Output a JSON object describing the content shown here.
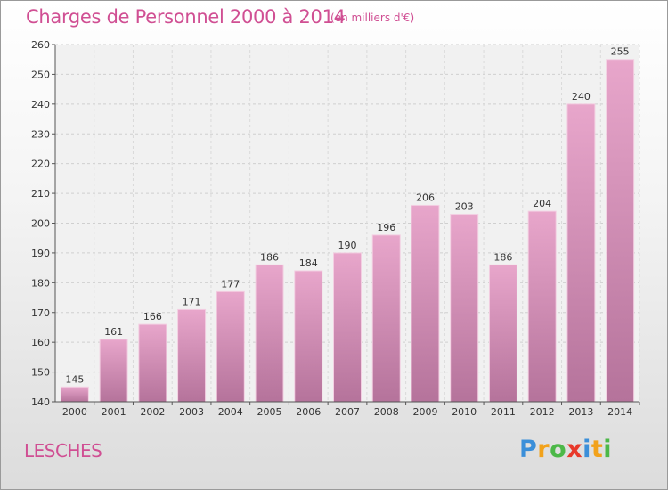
{
  "chart_data": {
    "type": "bar",
    "title": "Charges de Personnel 2000 à 2014",
    "subtitle": "(en milliers d'€)",
    "categories": [
      "2000",
      "2001",
      "2002",
      "2003",
      "2004",
      "2005",
      "2006",
      "2007",
      "2008",
      "2009",
      "2010",
      "2011",
      "2012",
      "2013",
      "2014"
    ],
    "values": [
      145,
      161,
      166,
      171,
      177,
      186,
      184,
      190,
      196,
      206,
      203,
      186,
      204,
      240,
      255
    ],
    "ylim": [
      140,
      260
    ],
    "yticks": [
      140,
      150,
      160,
      170,
      180,
      190,
      200,
      210,
      220,
      230,
      240,
      250,
      260
    ],
    "grid": true,
    "bar_color": "#d67fae"
  },
  "footer": {
    "place": "LESCHES",
    "logo": [
      {
        "ch": "P",
        "color": "#3b8fd9"
      },
      {
        "ch": "r",
        "color": "#f2a21b"
      },
      {
        "ch": "o",
        "color": "#4cb848"
      },
      {
        "ch": "x",
        "color": "#e8392b"
      },
      {
        "ch": "i",
        "color": "#3b8fd9"
      },
      {
        "ch": "t",
        "color": "#f2a21b"
      },
      {
        "ch": "i",
        "color": "#4cb848"
      }
    ]
  }
}
